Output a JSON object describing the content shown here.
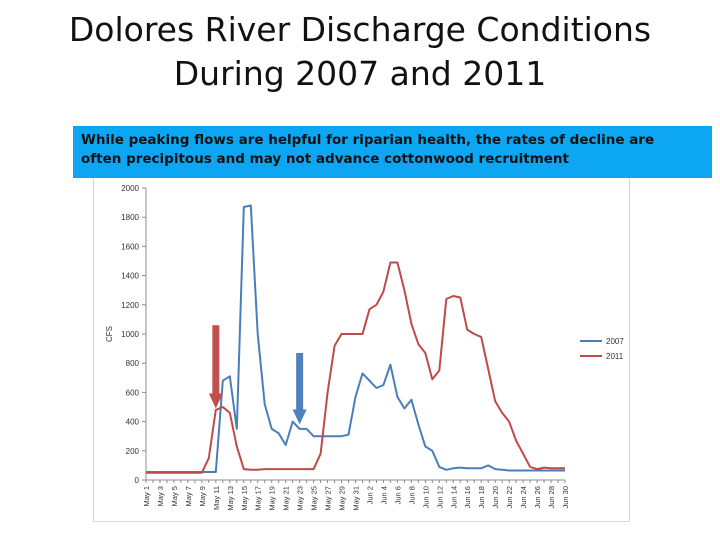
{
  "slide": {
    "title_line1": "Dolores River Discharge Conditions",
    "title_line2": "During 2007 and 2011",
    "callout_line1": "While peaking flows are helpful for riparian health, the rates of decline are",
    "callout_line2": "often precipitous and may not advance cottonwood recruitment"
  },
  "chart_data": {
    "type": "line",
    "title": "",
    "xlabel": "",
    "ylabel": "CFS",
    "ylim": [
      0,
      2000
    ],
    "yticks": [
      0,
      200,
      400,
      600,
      800,
      1000,
      1200,
      1400,
      1600,
      1800,
      2000
    ],
    "grid": false,
    "legend_position": "right",
    "x": [
      "May 1",
      "May 2",
      "May 3",
      "May 4",
      "May 5",
      "May 6",
      "May 7",
      "May 8",
      "May 9",
      "May 10",
      "May 11",
      "May 12",
      "May 13",
      "May 14",
      "May 15",
      "May 16",
      "May 17",
      "May 18",
      "May 19",
      "May 20",
      "May 21",
      "May 22",
      "May 23",
      "May 24",
      "May 25",
      "May 26",
      "May 27",
      "May 28",
      "May 29",
      "May 30",
      "May 31",
      "Jun 1",
      "Jun 2",
      "Jun 3",
      "Jun 4",
      "Jun 5",
      "Jun 6",
      "Jun 7",
      "Jun 8",
      "Jun 9",
      "Jun 10",
      "Jun 11",
      "Jun 12",
      "Jun 13",
      "Jun 14",
      "Jun 15",
      "Jun 16",
      "Jun 17",
      "Jun 18",
      "Jun 19",
      "Jun 20",
      "Jun 21",
      "Jun 22",
      "Jun 23",
      "Jun 24",
      "Jun 25",
      "Jun 26",
      "Jun 27",
      "Jun 28",
      "Jun 29",
      "Jun 30"
    ],
    "xtick_labels": [
      "May 1",
      "May 3",
      "May 5",
      "May 7",
      "May 9",
      "May 11",
      "May 13",
      "May 15",
      "May 17",
      "May 19",
      "May 21",
      "May 23",
      "May 25",
      "May 27",
      "May 29",
      "May 31",
      "Jun 2",
      "Jun 4",
      "Jun 6",
      "Jun 8",
      "Jun 10",
      "Jun 12",
      "Jun 14",
      "Jun 16",
      "Jun 18",
      "Jun 20",
      "Jun 22",
      "Jun 24",
      "Jun 26",
      "Jun 28",
      "Jun 30"
    ],
    "series": [
      {
        "name": "2007",
        "color": "#4a7ebb",
        "values": [
          55,
          55,
          55,
          55,
          55,
          55,
          55,
          55,
          55,
          55,
          55,
          680,
          710,
          350,
          1870,
          1880,
          1000,
          520,
          350,
          320,
          240,
          400,
          350,
          350,
          300,
          300,
          300,
          300,
          300,
          310,
          570,
          730,
          680,
          630,
          650,
          790,
          570,
          490,
          550,
          380,
          230,
          200,
          90,
          70,
          80,
          85,
          80,
          80,
          80,
          100,
          75,
          70,
          65,
          65,
          65,
          65,
          65,
          65,
          65,
          65,
          65
        ]
      },
      {
        "name": "2011",
        "color": "#be4b48",
        "values": [
          50,
          50,
          50,
          50,
          50,
          50,
          50,
          50,
          50,
          150,
          480,
          500,
          460,
          230,
          75,
          70,
          70,
          75,
          75,
          75,
          75,
          75,
          75,
          75,
          75,
          180,
          600,
          920,
          1000,
          1000,
          1000,
          1000,
          1170,
          1200,
          1290,
          1490,
          1490,
          1300,
          1070,
          930,
          870,
          690,
          750,
          1240,
          1260,
          1250,
          1030,
          1000,
          980,
          760,
          540,
          460,
          400,
          270,
          180,
          90,
          75,
          85,
          80,
          80,
          80
        ]
      }
    ],
    "arrows": [
      {
        "color": "#c0504d",
        "direction": "down",
        "at_x": "May 11",
        "top_value": 1060,
        "tip_value": 490
      },
      {
        "color": "#4f81bd",
        "direction": "down",
        "at_x": "May 23",
        "top_value": 870,
        "tip_value": 380
      }
    ]
  }
}
